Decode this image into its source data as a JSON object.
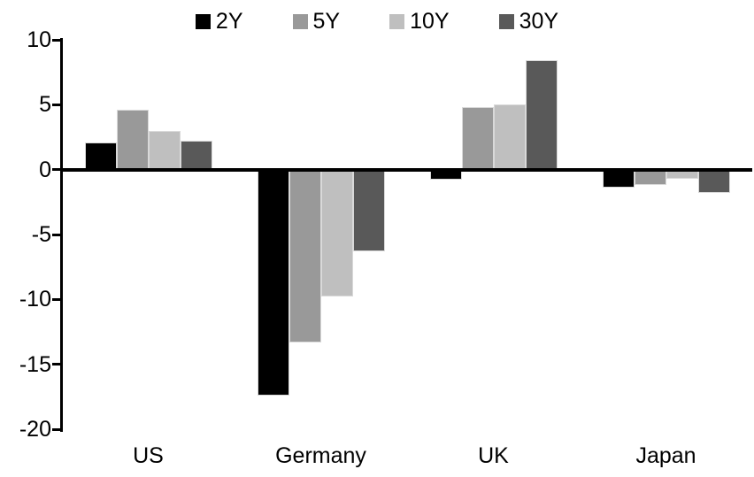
{
  "chart_data": {
    "type": "bar",
    "title": "",
    "xlabel": "",
    "ylabel": "",
    "categories": [
      "US",
      "Germany",
      "UK",
      "Japan"
    ],
    "series": [
      {
        "name": "2Y",
        "color": "#000000",
        "values": [
          2.1,
          -17.4,
          -0.8,
          -1.4
        ]
      },
      {
        "name": "5Y",
        "color": "#999999",
        "values": [
          4.6,
          -13.3,
          4.8,
          -1.2
        ]
      },
      {
        "name": "10Y",
        "color": "#bfbfbf",
        "values": [
          3.0,
          -9.8,
          5.0,
          -0.7
        ]
      },
      {
        "name": "30Y",
        "color": "#595959",
        "values": [
          2.2,
          -6.3,
          8.4,
          -1.8
        ]
      }
    ],
    "ylim": [
      -20,
      10
    ],
    "yticks": [
      10,
      5,
      0,
      -5,
      -10,
      -15,
      -20
    ],
    "grid": false,
    "legend_position": "top",
    "axis_color": "#000000",
    "background_color": "#ffffff"
  }
}
